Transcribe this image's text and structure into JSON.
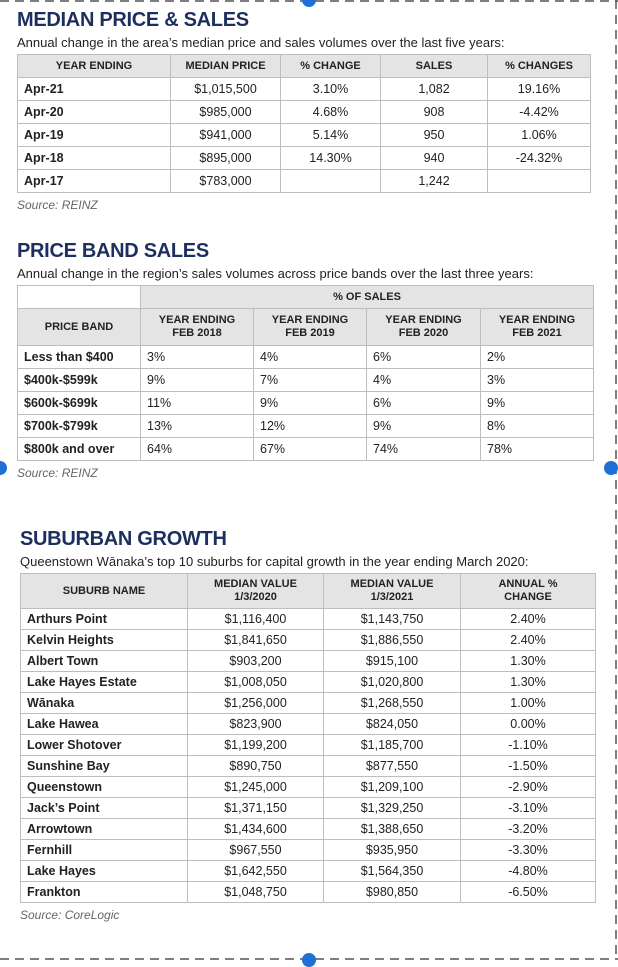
{
  "sections": [
    {
      "title": "MEDIAN PRICE & SALES",
      "subtitle": "Annual change in the area’s median price and sales volumes over the last five years:",
      "table": {
        "header": [
          "YEAR ENDING",
          "MEDIAN PRICE",
          "% CHANGE",
          "SALES",
          "% CHANGES"
        ],
        "rows": [
          [
            "Apr-21",
            "$1,015,500",
            "3.10%",
            "1,082",
            "19.16%"
          ],
          [
            "Apr-20",
            "$985,000",
            "4.68%",
            "908",
            "-4.42%"
          ],
          [
            "Apr-19",
            "$941,000",
            "5.14%",
            "950",
            "1.06%"
          ],
          [
            "Apr-18",
            "$895,000",
            "14.30%",
            "940",
            "-24.32%"
          ],
          [
            "Apr-17",
            "$783,000",
            null,
            "1,242",
            null
          ]
        ]
      },
      "source": "Source: REINZ"
    },
    {
      "title": "PRICE BAND SALES",
      "subtitle": "Annual change in the region’s sales volumes across price bands over the last three years:",
      "table": {
        "group_header": "% OF SALES",
        "header": [
          "PRICE BAND",
          "YEAR ENDING\nFEB 2018",
          "YEAR ENDING\nFEB 2019",
          "YEAR ENDING\nFEB 2020",
          "YEAR ENDING\nFEB 2021"
        ],
        "rows": [
          [
            "Less than $400",
            "3%",
            "4%",
            "6%",
            "2%"
          ],
          [
            "$400k-$599k",
            "9%",
            "7%",
            "4%",
            "3%"
          ],
          [
            "$600k-$699k",
            "11%",
            "9%",
            "6%",
            "9%"
          ],
          [
            "$700k-$799k",
            "13%",
            "12%",
            "9%",
            "8%"
          ],
          [
            "$800k and over",
            "64%",
            "67%",
            "74%",
            "78%"
          ]
        ]
      },
      "source": "Source: REINZ"
    },
    {
      "title": "SUBURBAN GROWTH",
      "subtitle": "Queenstown Wānaka’s top 10 suburbs for capital growth in the year ending March 2020:",
      "table": {
        "header": [
          "SUBURB NAME",
          "MEDIAN VALUE\n1/3/2020",
          "MEDIAN VALUE\n1/3/2021",
          "ANNUAL %\nCHANGE"
        ],
        "rows": [
          [
            "Arthurs Point",
            "$1,116,400",
            "$1,143,750",
            "2.40%"
          ],
          [
            "Kelvin Heights",
            "$1,841,650",
            "$1,886,550",
            "2.40%"
          ],
          [
            "Albert Town",
            "$903,200",
            "$915,100",
            "1.30%"
          ],
          [
            "Lake Hayes Estate",
            "$1,008,050",
            "$1,020,800",
            "1.30%"
          ],
          [
            "Wānaka",
            "$1,256,000",
            "$1,268,550",
            "1.00%"
          ],
          [
            "Lake Hawea",
            "$823,900",
            "$824,050",
            "0.00%"
          ],
          [
            "Lower Shotover",
            "$1,199,200",
            "$1,185,700",
            "-1.10%"
          ],
          [
            "Sunshine Bay",
            "$890,750",
            "$877,550",
            "-1.50%"
          ],
          [
            "Queenstown",
            "$1,245,000",
            "$1,209,100",
            "-2.90%"
          ],
          [
            "Jack’s Point",
            "$1,371,150",
            "$1,329,250",
            "-3.10%"
          ],
          [
            "Arrowtown",
            "$1,434,600",
            "$1,388,650",
            "-3.20%"
          ],
          [
            "Fernhill",
            "$967,550",
            "$935,950",
            "-3.30%"
          ],
          [
            "Lake Hayes",
            "$1,642,550",
            "$1,564,350",
            "-4.80%"
          ],
          [
            "Frankton",
            "$1,048,750",
            "$980,850",
            "-6.50%"
          ]
        ]
      },
      "source": "Source: CoreLogic"
    }
  ]
}
